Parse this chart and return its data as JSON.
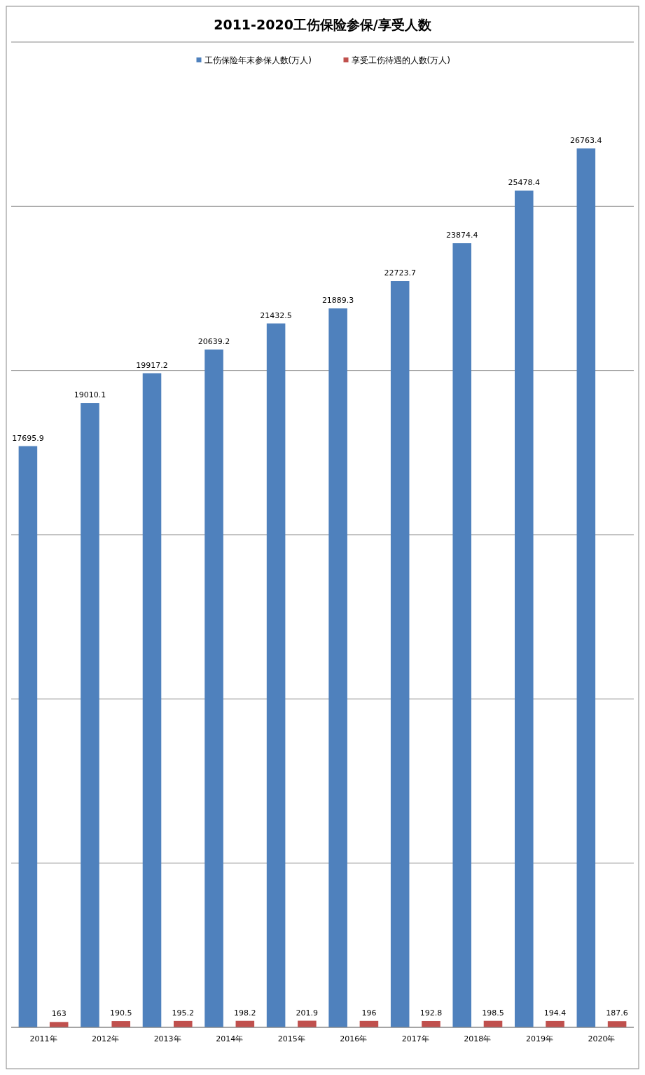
{
  "chart_data": {
    "type": "bar",
    "title": "2011-2020工伤保险参保/享受人数",
    "categories": [
      "2011年",
      "2012年",
      "2013年",
      "2014年",
      "2015年",
      "2016年",
      "2017年",
      "2018年",
      "2019年",
      "2020年"
    ],
    "series": [
      {
        "name": "工伤保险年末参保人数(万人)",
        "color": "#4f81bd",
        "values": [
          17695.9,
          19010.1,
          19917.2,
          20639.2,
          21432.5,
          21889.3,
          22723.7,
          23874.4,
          25478.4,
          26763.4
        ]
      },
      {
        "name": "享受工伤待遇的人数(万人)",
        "color": "#c0504d",
        "values": [
          163,
          190.5,
          195.2,
          198.2,
          201.9,
          196,
          192.8,
          198.5,
          194.4,
          187.6
        ]
      }
    ],
    "ylim": [
      0,
      30000
    ],
    "yticks": [
      {
        "value": 0,
        "label": null
      },
      {
        "value": 5000,
        "label": null
      },
      {
        "value": 10000,
        "label": null
      },
      {
        "value": 15000,
        "label": null
      },
      {
        "value": 20000,
        "label": null
      },
      {
        "value": 25000,
        "label": null
      },
      {
        "value": 30000,
        "label": null
      }
    ],
    "tick_labels": "x",
    "grid": "y",
    "legend": "top",
    "data_labels": true
  }
}
